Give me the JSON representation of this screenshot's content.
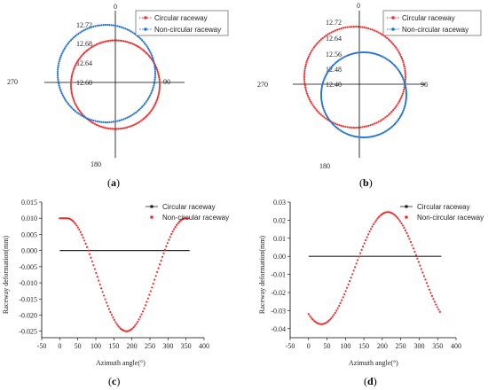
{
  "colors": {
    "circular": "#ee2b2b",
    "noncircular": "#1f6fd1",
    "circular_line": "#222222",
    "axis": "#000000"
  },
  "chart_data": [
    {
      "panel": "a",
      "type": "polar",
      "series": [
        {
          "name": "Circular raceway",
          "shape": "circle",
          "center_offset": [
            0,
            2.5
          ],
          "radius": 50
        },
        {
          "name": "Non-circular raceway",
          "shape": "circle",
          "center_offset": [
            -10,
            -10
          ],
          "radius": 55
        }
      ],
      "angle_labels": [
        "0",
        "90",
        "180",
        "270"
      ],
      "radial_ticks": [
        "12.72",
        "12.68",
        "12.64",
        "12.60"
      ],
      "legend": [
        "Circular raceway",
        "Non-circular raceway"
      ]
    },
    {
      "panel": "b",
      "type": "polar",
      "series": [
        {
          "name": "Circular raceway",
          "shape": "circle",
          "center_offset": [
            -5,
            -8
          ],
          "radius": 57
        },
        {
          "name": "Non-circular raceway",
          "shape": "circle",
          "center_offset": [
            5,
            12
          ],
          "radius": 48
        }
      ],
      "angle_labels": [
        "0",
        "90",
        "180",
        "270"
      ],
      "radial_ticks": [
        "12.72",
        "12.64",
        "12.56",
        "12.48",
        "12.40"
      ],
      "legend": [
        "Circular raceway",
        "Non-circular raceway"
      ]
    },
    {
      "panel": "c",
      "type": "line",
      "xlabel": "Azimuth angle(°)",
      "ylabel": "Raceway deformation(mm)",
      "xlim": [
        -50,
        400
      ],
      "ylim": [
        -0.027,
        0.015
      ],
      "x_ticks": [
        -50,
        0,
        50,
        100,
        150,
        200,
        250,
        300,
        350,
        400
      ],
      "y_ticks": [
        0.015,
        0.01,
        0.005,
        0,
        -0.005,
        -0.01,
        -0.015,
        -0.02,
        -0.025
      ],
      "y_tick_labels": [
        "0.015",
        "0.010",
        "0.005",
        "0.000",
        "-0.005",
        "-0.010",
        "-0.015",
        "-0.020",
        "-0.025"
      ],
      "series": [
        {
          "name": "Circular raceway",
          "model": "constant",
          "value": 0
        },
        {
          "name": "Non-circular raceway",
          "model": "waveC"
        }
      ],
      "legend": [
        "Circular raceway",
        "Non-circular raceway"
      ]
    },
    {
      "panel": "d",
      "type": "line",
      "xlabel": "Azimuth angle(°)",
      "ylabel": "Raceway deformation(mm)",
      "xlim": [
        -50,
        400
      ],
      "ylim": [
        -0.045,
        0.03
      ],
      "x_ticks": [
        -50,
        0,
        50,
        100,
        150,
        200,
        250,
        300,
        350,
        400
      ],
      "y_ticks": [
        0.03,
        0.02,
        0.01,
        0,
        -0.01,
        -0.02,
        -0.03,
        -0.04
      ],
      "y_tick_labels": [
        "0.03",
        "0.02",
        "0.01",
        "0.00",
        "-0.01",
        "-0.02",
        "-0.03",
        "-0.04"
      ],
      "series": [
        {
          "name": "Circular raceway",
          "model": "constant",
          "value": 0
        },
        {
          "name": "Non-circular raceway",
          "model": "waveD"
        }
      ],
      "legend": [
        "Circular raceway",
        "Non-circular raceway"
      ]
    }
  ],
  "panel_labels": [
    "(a)",
    "(b)",
    "(c)",
    "(d)"
  ]
}
